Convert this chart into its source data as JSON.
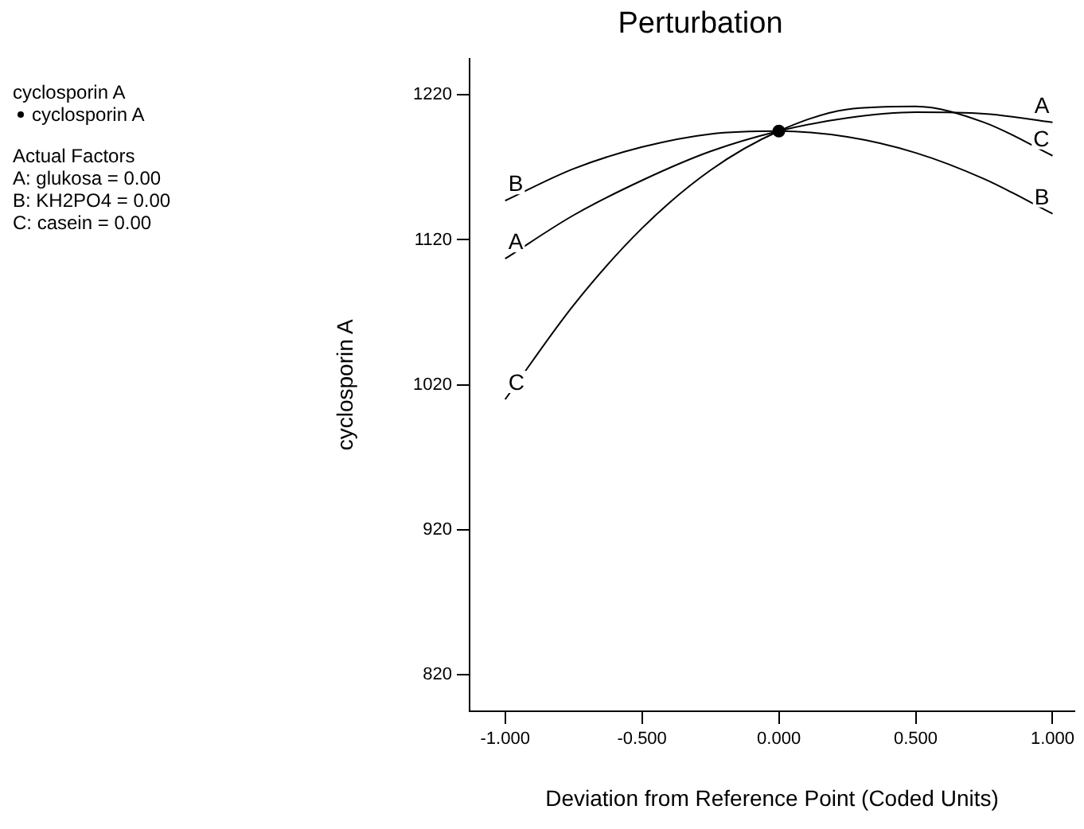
{
  "chart_data": {
    "type": "line",
    "title": "Perturbation",
    "xlabel": "Deviation from Reference Point (Coded Units)",
    "ylabel": "cyclosporin A",
    "annotations": [
      "cyclosporin A",
      "Actual Factors",
      "A: glukosa = 0.00",
      "B: KH2PO4 = 0.00",
      "C: casein = 0.00"
    ],
    "x": [
      -1,
      -0.75,
      -0.5,
      -0.25,
      0,
      0.25,
      0.5,
      0.75,
      1
    ],
    "series": [
      {
        "name": "A",
        "color": "#000000",
        "values": [
          1107,
          1137,
          1161,
          1181,
          1195,
          1204,
          1208,
          1207,
          1201
        ]
      },
      {
        "name": "B",
        "color": "#000000",
        "values": [
          1147,
          1169,
          1184,
          1193,
          1195,
          1191,
          1180,
          1162,
          1138
        ]
      },
      {
        "name": "C",
        "color": "#000000",
        "values": [
          1010,
          1075,
          1128,
          1168,
          1195,
          1210,
          1212,
          1201,
          1178
        ]
      },
      {
        "name": "cyclosporin A",
        "type": "scatter",
        "marker": "circle",
        "color": "#000000",
        "x": [
          0
        ],
        "values": [
          1195
        ]
      }
    ],
    "xlim": [
      -1.13,
      1.08
    ],
    "xticks": [
      {
        "value": -1,
        "label": "-1.000"
      },
      {
        "value": -0.5,
        "label": "-0.500"
      },
      {
        "value": 0,
        "label": "0.000"
      },
      {
        "value": 0.5,
        "label": "0.500"
      },
      {
        "value": 1,
        "label": "1.000"
      }
    ],
    "ylim": [
      795,
      1245
    ],
    "yticks": [
      820,
      920,
      1020,
      1120,
      1220
    ],
    "grid": false,
    "legend": "left",
    "marker": "none",
    "line_style": "solid"
  }
}
